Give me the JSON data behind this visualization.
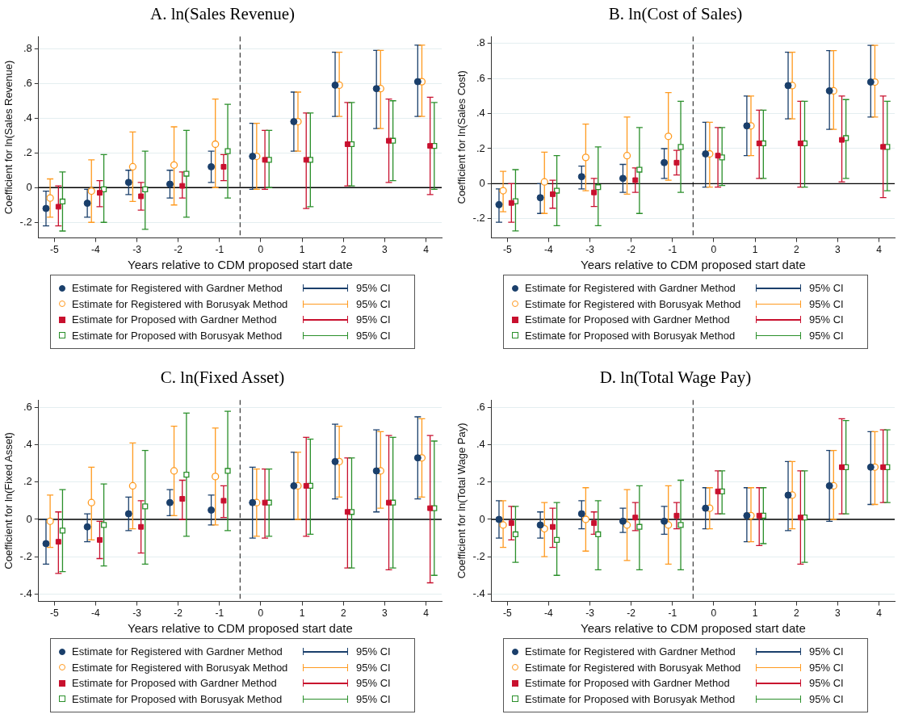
{
  "chart_data": [
    {
      "type": "scatter",
      "title": "A. ln(Sales Revenue)",
      "xlabel": "Years relative to CDM proposed start date",
      "ylabel": "Coefficient for ln(Sales Revenue)",
      "xlim": [
        -5.38,
        4.38
      ],
      "xticks": [
        -5,
        -4,
        -3,
        -2,
        -1,
        0,
        1,
        2,
        3,
        4
      ],
      "ylim": [
        -0.29,
        0.87
      ],
      "yticks": [
        {
          "value": -0.2,
          "label": "-.2"
        },
        {
          "value": 0,
          "label": "0"
        },
        {
          "value": 0.2,
          "label": ".2"
        },
        {
          "value": 0.4,
          "label": ".4"
        },
        {
          "value": 0.6,
          "label": ".6"
        },
        {
          "value": 0.8,
          "label": ".8"
        }
      ],
      "grid": "y",
      "legend": "bottom",
      "ref_lines": [
        {
          "axis": "x",
          "value": -0.5,
          "color": "#444444",
          "line_style": "dashed"
        },
        {
          "axis": "y",
          "value": 0,
          "color": "#000000"
        }
      ],
      "annotations": [
        "95% CI",
        "95% CI",
        "95% CI",
        "95% CI"
      ],
      "series": [
        {
          "name": "Estimate for Registered with Gardner Method",
          "color": "#1a3f6b",
          "marker": "circle",
          "x": [
            -5.2,
            -4.2,
            -3.2,
            -2.2,
            -1.2,
            -0.2,
            0.8,
            1.8,
            2.8,
            3.8
          ],
          "values": [
            -0.12,
            -0.09,
            0.03,
            0.02,
            0.12,
            0.18,
            0.38,
            0.59,
            0.57,
            0.61
          ],
          "errors": [
            [
              -0.22,
              -0.02
            ],
            [
              -0.17,
              -0.01
            ],
            [
              -0.04,
              0.1
            ],
            [
              -0.06,
              0.1
            ],
            [
              0.03,
              0.21
            ],
            [
              -0.01,
              0.37
            ],
            [
              0.21,
              0.55
            ],
            [
              0.41,
              0.78
            ],
            [
              0.34,
              0.79
            ],
            [
              0.41,
              0.82
            ]
          ]
        },
        {
          "name": "Estimate for Registered with Borusyak Method",
          "color": "#ff9a1f",
          "marker": "circle",
          "x": [
            -5.1,
            -4.1,
            -3.1,
            -2.1,
            -1.1,
            -0.1,
            0.9,
            1.9,
            2.9,
            3.9
          ],
          "values": [
            -0.06,
            -0.02,
            0.12,
            0.13,
            0.25,
            0.18,
            0.38,
            0.59,
            0.57,
            0.61
          ],
          "errors": [
            [
              -0.17,
              0.05
            ],
            [
              -0.2,
              0.16
            ],
            [
              -0.08,
              0.32
            ],
            [
              -0.1,
              0.35
            ],
            [
              0.0,
              0.51
            ],
            [
              -0.01,
              0.37
            ],
            [
              0.21,
              0.55
            ],
            [
              0.41,
              0.78
            ],
            [
              0.34,
              0.79
            ],
            [
              0.41,
              0.82
            ]
          ]
        },
        {
          "name": "Estimate for Proposed with Gardner Method",
          "color": "#c8102e",
          "marker": "square",
          "x": [
            -4.9,
            -3.9,
            -2.9,
            -1.9,
            -0.9,
            0.1,
            1.1,
            2.1,
            3.1,
            4.1
          ],
          "values": [
            -0.11,
            -0.03,
            -0.05,
            0.01,
            0.12,
            0.16,
            0.16,
            0.25,
            0.27,
            0.24
          ],
          "errors": [
            [
              -0.22,
              0.01
            ],
            [
              -0.11,
              0.04
            ],
            [
              -0.13,
              0.03
            ],
            [
              -0.06,
              0.09
            ],
            [
              0.04,
              0.19
            ],
            [
              -0.01,
              0.33
            ],
            [
              -0.12,
              0.43
            ],
            [
              0.01,
              0.49
            ],
            [
              0.03,
              0.51
            ],
            [
              -0.04,
              0.52
            ]
          ]
        },
        {
          "name": "Estimate for Proposed with Borusyak Method",
          "color": "#2a8f2a",
          "marker": "square",
          "x": [
            -4.8,
            -3.8,
            -2.8,
            -1.8,
            -0.8,
            0.2,
            1.2,
            2.2,
            3.2,
            4.2
          ],
          "values": [
            -0.08,
            -0.01,
            -0.01,
            0.08,
            0.21,
            0.16,
            0.16,
            0.25,
            0.27,
            0.24
          ],
          "errors": [
            [
              -0.25,
              0.09
            ],
            [
              -0.2,
              0.19
            ],
            [
              -0.24,
              0.21
            ],
            [
              -0.17,
              0.33
            ],
            [
              -0.06,
              0.48
            ],
            [
              0.0,
              0.33
            ],
            [
              -0.11,
              0.43
            ],
            [
              0.01,
              0.49
            ],
            [
              0.04,
              0.5
            ],
            [
              -0.01,
              0.49
            ]
          ]
        }
      ]
    },
    {
      "type": "scatter",
      "title": "B. ln(Cost of Sales)",
      "xlabel": "Years relative to CDM proposed start date",
      "ylabel": "Coefficient for ln(Sales Cost)",
      "xlim": [
        -5.38,
        4.38
      ],
      "xticks": [
        -5,
        -4,
        -3,
        -2,
        -1,
        0,
        1,
        2,
        3,
        4
      ],
      "ylim": [
        -0.31,
        0.84
      ],
      "yticks": [
        {
          "value": -0.2,
          "label": "-.2"
        },
        {
          "value": 0,
          "label": "0"
        },
        {
          "value": 0.2,
          "label": ".2"
        },
        {
          "value": 0.4,
          "label": ".4"
        },
        {
          "value": 0.6,
          "label": ".6"
        },
        {
          "value": 0.8,
          "label": ".8"
        }
      ],
      "grid": "y",
      "legend": "bottom",
      "ref_lines": [
        {
          "axis": "x",
          "value": -0.5,
          "color": "#444444",
          "line_style": "dashed"
        },
        {
          "axis": "y",
          "value": 0,
          "color": "#000000"
        }
      ],
      "annotations": [
        "95% CI",
        "95% CI",
        "95% CI",
        "95% CI"
      ],
      "series": [
        {
          "name": "Estimate for Registered with Gardner Method",
          "color": "#1a3f6b",
          "marker": "circle",
          "x": [
            -5.2,
            -4.2,
            -3.2,
            -2.2,
            -1.2,
            -0.2,
            0.8,
            1.8,
            2.8,
            3.8
          ],
          "values": [
            -0.12,
            -0.08,
            0.04,
            0.03,
            0.12,
            0.17,
            0.33,
            0.56,
            0.53,
            0.58
          ],
          "errors": [
            [
              -0.22,
              -0.03
            ],
            [
              -0.17,
              0.0
            ],
            [
              -0.03,
              0.1
            ],
            [
              -0.05,
              0.11
            ],
            [
              0.03,
              0.2
            ],
            [
              -0.02,
              0.35
            ],
            [
              0.16,
              0.5
            ],
            [
              0.37,
              0.75
            ],
            [
              0.31,
              0.76
            ],
            [
              0.38,
              0.79
            ]
          ]
        },
        {
          "name": "Estimate for Registered with Borusyak Method",
          "color": "#ff9a1f",
          "marker": "circle",
          "x": [
            -5.1,
            -4.1,
            -3.1,
            -2.1,
            -1.1,
            -0.1,
            0.9,
            1.9,
            2.9,
            3.9
          ],
          "values": [
            -0.04,
            0.01,
            0.15,
            0.16,
            0.27,
            0.17,
            0.33,
            0.56,
            0.53,
            0.58
          ],
          "errors": [
            [
              -0.16,
              0.07
            ],
            [
              -0.17,
              0.18
            ],
            [
              -0.04,
              0.34
            ],
            [
              -0.06,
              0.38
            ],
            [
              0.02,
              0.52
            ],
            [
              -0.02,
              0.35
            ],
            [
              0.16,
              0.5
            ],
            [
              0.37,
              0.75
            ],
            [
              0.31,
              0.76
            ],
            [
              0.38,
              0.79
            ]
          ]
        },
        {
          "name": "Estimate for Proposed with Gardner Method",
          "color": "#c8102e",
          "marker": "square",
          "x": [
            -4.9,
            -3.9,
            -2.9,
            -1.9,
            -0.9,
            0.1,
            1.1,
            2.1,
            3.1,
            4.1
          ],
          "values": [
            -0.11,
            -0.06,
            -0.05,
            0.02,
            0.12,
            0.16,
            0.23,
            0.23,
            0.25,
            0.21
          ],
          "errors": [
            [
              -0.22,
              0.0
            ],
            [
              -0.14,
              0.02
            ],
            [
              -0.13,
              0.03
            ],
            [
              -0.05,
              0.09
            ],
            [
              0.05,
              0.19
            ],
            [
              -0.02,
              0.32
            ],
            [
              0.03,
              0.42
            ],
            [
              -0.02,
              0.47
            ],
            [
              0.01,
              0.5
            ],
            [
              -0.08,
              0.5
            ]
          ]
        },
        {
          "name": "Estimate for Proposed with Borusyak Method",
          "color": "#2a8f2a",
          "marker": "square",
          "x": [
            -4.8,
            -3.8,
            -2.8,
            -1.8,
            -0.8,
            0.2,
            1.2,
            2.2,
            3.2,
            4.2
          ],
          "values": [
            -0.1,
            -0.04,
            -0.02,
            0.08,
            0.21,
            0.15,
            0.23,
            0.23,
            0.26,
            0.21
          ],
          "errors": [
            [
              -0.27,
              0.08
            ],
            [
              -0.24,
              0.16
            ],
            [
              -0.24,
              0.21
            ],
            [
              -0.17,
              0.32
            ],
            [
              -0.05,
              0.47
            ],
            [
              -0.01,
              0.32
            ],
            [
              0.03,
              0.42
            ],
            [
              -0.02,
              0.47
            ],
            [
              0.03,
              0.48
            ],
            [
              -0.04,
              0.47
            ]
          ]
        }
      ]
    },
    {
      "type": "scatter",
      "title": "C. ln(Fixed Asset)",
      "xlabel": "Years relative to CDM proposed start date",
      "ylabel": "Coefficient for ln(Fixed Asset)",
      "xlim": [
        -5.38,
        4.38
      ],
      "xticks": [
        -5,
        -4,
        -3,
        -2,
        -1,
        0,
        1,
        2,
        3,
        4
      ],
      "ylim": [
        -0.44,
        0.64
      ],
      "yticks": [
        {
          "value": -0.4,
          "label": "-.4"
        },
        {
          "value": -0.2,
          "label": "-.2"
        },
        0,
        {
          "value": 0.2,
          "label": ".2"
        },
        {
          "value": 0.4,
          "label": ".4"
        },
        {
          "value": 0.6,
          "label": ".6"
        }
      ],
      "grid": "y",
      "legend": "bottom",
      "ref_lines": [
        {
          "axis": "x",
          "value": -0.5,
          "color": "#444444",
          "line_style": "dashed"
        },
        {
          "axis": "y",
          "value": 0,
          "color": "#000000"
        }
      ],
      "annotations": [
        "95% CI",
        "95% CI",
        "95% CI",
        "95% CI"
      ],
      "series": [
        {
          "name": "Estimate for Registered with Gardner Method",
          "color": "#1a3f6b",
          "marker": "circle",
          "x": [
            -5.2,
            -4.2,
            -3.2,
            -2.2,
            -1.2,
            -0.2,
            0.8,
            1.8,
            2.8,
            3.8
          ],
          "values": [
            -0.13,
            -0.04,
            0.03,
            0.09,
            0.05,
            0.09,
            0.18,
            0.31,
            0.26,
            0.33
          ],
          "errors": [
            [
              -0.24,
              0.0
            ],
            [
              -0.12,
              0.03
            ],
            [
              -0.06,
              0.12
            ],
            [
              0.02,
              0.16
            ],
            [
              -0.03,
              0.13
            ],
            [
              -0.1,
              0.28
            ],
            [
              0.0,
              0.36
            ],
            [
              0.11,
              0.51
            ],
            [
              0.04,
              0.48
            ],
            [
              0.11,
              0.55
            ]
          ]
        },
        {
          "name": "Estimate for Registered with Borusyak Method",
          "color": "#ff9a1f",
          "marker": "circle",
          "x": [
            -5.1,
            -4.1,
            -3.1,
            -2.1,
            -1.1,
            -0.1,
            0.9,
            1.9,
            2.9,
            3.9
          ],
          "values": [
            -0.01,
            0.09,
            0.18,
            0.26,
            0.23,
            0.09,
            0.18,
            0.31,
            0.26,
            0.33
          ],
          "errors": [
            [
              -0.15,
              0.13
            ],
            [
              -0.11,
              0.28
            ],
            [
              -0.05,
              0.41
            ],
            [
              0.02,
              0.5
            ],
            [
              -0.03,
              0.49
            ],
            [
              -0.09,
              0.27
            ],
            [
              0.0,
              0.36
            ],
            [
              0.12,
              0.5
            ],
            [
              0.06,
              0.47
            ],
            [
              0.12,
              0.54
            ]
          ]
        },
        {
          "name": "Estimate for Proposed with Gardner Method",
          "color": "#c8102e",
          "marker": "square",
          "x": [
            -4.9,
            -3.9,
            -2.9,
            -1.9,
            -0.9,
            0.1,
            1.1,
            2.1,
            3.1,
            4.1
          ],
          "values": [
            -0.12,
            -0.11,
            -0.04,
            0.11,
            0.1,
            0.09,
            0.18,
            0.04,
            0.09,
            0.06
          ],
          "errors": [
            [
              -0.29,
              0.04
            ],
            [
              -0.21,
              -0.01
            ],
            [
              -0.18,
              0.1
            ],
            [
              0.0,
              0.21
            ],
            [
              0.01,
              0.18
            ],
            [
              -0.1,
              0.27
            ],
            [
              -0.09,
              0.44
            ],
            [
              -0.26,
              0.33
            ],
            [
              -0.27,
              0.45
            ],
            [
              -0.34,
              0.45
            ]
          ]
        },
        {
          "name": "Estimate for Proposed with Borusyak Method",
          "color": "#2a8f2a",
          "marker": "square",
          "x": [
            -4.8,
            -3.8,
            -2.8,
            -1.8,
            -0.8,
            0.2,
            1.2,
            2.2,
            3.2,
            4.2
          ],
          "values": [
            -0.06,
            -0.03,
            0.07,
            0.24,
            0.26,
            0.09,
            0.18,
            0.04,
            0.09,
            0.06
          ],
          "errors": [
            [
              -0.28,
              0.16
            ],
            [
              -0.25,
              0.19
            ],
            [
              -0.24,
              0.37
            ],
            [
              -0.09,
              0.57
            ],
            [
              -0.06,
              0.58
            ],
            [
              -0.09,
              0.27
            ],
            [
              -0.08,
              0.43
            ],
            [
              -0.26,
              0.33
            ],
            [
              -0.26,
              0.44
            ],
            [
              -0.3,
              0.42
            ]
          ]
        }
      ]
    },
    {
      "type": "scatter",
      "title": "D. ln(Total Wage Pay)",
      "xlabel": "Years relative to CDM proposed start date",
      "ylabel": "Coefficient for ln(Total Wage Pay)",
      "xlim": [
        -5.38,
        4.38
      ],
      "xticks": [
        -5,
        -4,
        -3,
        -2,
        -1,
        0,
        1,
        2,
        3,
        4
      ],
      "ylim": [
        -0.44,
        0.64
      ],
      "yticks": [
        {
          "value": -0.4,
          "label": "-.4"
        },
        {
          "value": -0.2,
          "label": "-.2"
        },
        0,
        {
          "value": 0.2,
          "label": ".2"
        },
        {
          "value": 0.4,
          "label": ".4"
        },
        {
          "value": 0.6,
          "label": ".6"
        }
      ],
      "grid": "y",
      "legend": "bottom",
      "ref_lines": [
        {
          "axis": "x",
          "value": -0.5,
          "color": "#444444",
          "line_style": "dashed"
        },
        {
          "axis": "y",
          "value": 0,
          "color": "#000000"
        }
      ],
      "annotations": [
        "95% CI",
        "95% CI",
        "95% CI",
        "95% CI"
      ],
      "series": [
        {
          "name": "Estimate for Registered with Gardner Method",
          "color": "#1a3f6b",
          "marker": "circle",
          "x": [
            -5.2,
            -4.2,
            -3.2,
            -2.2,
            -1.2,
            -0.2,
            0.8,
            1.8,
            2.8,
            3.8
          ],
          "values": [
            0.0,
            -0.03,
            0.03,
            -0.01,
            -0.01,
            0.06,
            0.02,
            0.13,
            0.18,
            0.28
          ],
          "errors": [
            [
              -0.1,
              0.1
            ],
            [
              -0.1,
              0.04
            ],
            [
              -0.05,
              0.1
            ],
            [
              -0.07,
              0.06
            ],
            [
              -0.08,
              0.07
            ],
            [
              -0.05,
              0.17
            ],
            [
              -0.12,
              0.17
            ],
            [
              -0.06,
              0.31
            ],
            [
              -0.01,
              0.37
            ],
            [
              0.08,
              0.47
            ]
          ]
        },
        {
          "name": "Estimate for Registered with Borusyak Method",
          "color": "#ff9a1f",
          "marker": "circle",
          "x": [
            -5.1,
            -4.1,
            -3.1,
            -2.1,
            -1.1,
            -0.1,
            0.9,
            1.9,
            2.9,
            3.9
          ],
          "values": [
            -0.03,
            -0.05,
            0.0,
            -0.03,
            -0.03,
            0.06,
            0.02,
            0.13,
            0.18,
            0.28
          ],
          "errors": [
            [
              -0.15,
              0.1
            ],
            [
              -0.2,
              0.09
            ],
            [
              -0.17,
              0.17
            ],
            [
              -0.22,
              0.16
            ],
            [
              -0.24,
              0.18
            ],
            [
              -0.05,
              0.17
            ],
            [
              -0.12,
              0.17
            ],
            [
              -0.05,
              0.31
            ],
            [
              0.0,
              0.37
            ],
            [
              0.08,
              0.47
            ]
          ]
        },
        {
          "name": "Estimate for Proposed with Gardner Method",
          "color": "#c8102e",
          "marker": "square",
          "x": [
            -4.9,
            -3.9,
            -2.9,
            -1.9,
            -0.9,
            0.1,
            1.1,
            2.1,
            3.1,
            4.1
          ],
          "values": [
            -0.02,
            -0.04,
            -0.02,
            0.01,
            0.02,
            0.15,
            0.02,
            0.01,
            0.28,
            0.28
          ],
          "errors": [
            [
              -0.11,
              0.07
            ],
            [
              -0.15,
              0.06
            ],
            [
              -0.08,
              0.04
            ],
            [
              -0.06,
              0.09
            ],
            [
              -0.05,
              0.09
            ],
            [
              0.03,
              0.26
            ],
            [
              -0.14,
              0.17
            ],
            [
              -0.24,
              0.26
            ],
            [
              0.03,
              0.54
            ],
            [
              0.09,
              0.48
            ]
          ]
        },
        {
          "name": "Estimate for Proposed with Borusyak Method",
          "color": "#2a8f2a",
          "marker": "square",
          "x": [
            -4.8,
            -3.8,
            -2.8,
            -1.8,
            -0.8,
            0.2,
            1.2,
            2.2,
            3.2,
            4.2
          ],
          "values": [
            -0.08,
            -0.11,
            -0.08,
            -0.04,
            -0.03,
            0.15,
            0.02,
            0.01,
            0.28,
            0.28
          ],
          "errors": [
            [
              -0.23,
              0.07
            ],
            [
              -0.3,
              0.09
            ],
            [
              -0.27,
              0.1
            ],
            [
              -0.27,
              0.18
            ],
            [
              -0.27,
              0.21
            ],
            [
              0.03,
              0.26
            ],
            [
              -0.13,
              0.17
            ],
            [
              -0.23,
              0.26
            ],
            [
              0.03,
              0.53
            ],
            [
              0.09,
              0.48
            ]
          ]
        }
      ]
    }
  ]
}
